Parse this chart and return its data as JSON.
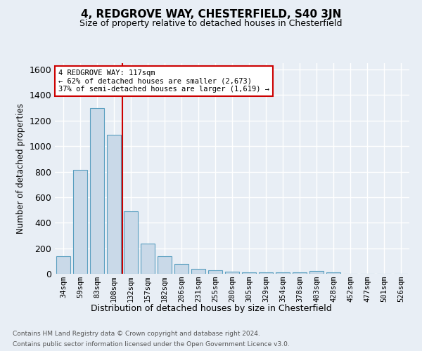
{
  "title": "4, REDGROVE WAY, CHESTERFIELD, S40 3JN",
  "subtitle": "Size of property relative to detached houses in Chesterfield",
  "xlabel": "Distribution of detached houses by size in Chesterfield",
  "ylabel": "Number of detached properties",
  "footer_line1": "Contains HM Land Registry data © Crown copyright and database right 2024.",
  "footer_line2": "Contains public sector information licensed under the Open Government Licence v3.0.",
  "bin_labels": [
    "34sqm",
    "59sqm",
    "83sqm",
    "108sqm",
    "132sqm",
    "157sqm",
    "182sqm",
    "206sqm",
    "231sqm",
    "255sqm",
    "280sqm",
    "305sqm",
    "329sqm",
    "354sqm",
    "378sqm",
    "403sqm",
    "428sqm",
    "452sqm",
    "477sqm",
    "501sqm",
    "526sqm"
  ],
  "bar_values": [
    140,
    815,
    1300,
    1090,
    490,
    235,
    135,
    75,
    40,
    25,
    15,
    10,
    10,
    10,
    10,
    20,
    10,
    0,
    0,
    0,
    0
  ],
  "bar_color": "#c9d9e8",
  "bar_edge_color": "#5a9fc0",
  "vline_color": "#cc0000",
  "annotation_text": "4 REDGROVE WAY: 117sqm\n← 62% of detached houses are smaller (2,673)\n37% of semi-detached houses are larger (1,619) →",
  "annotation_box_color": "#ffffff",
  "annotation_box_edge": "#cc0000",
  "ylim": [
    0,
    1650
  ],
  "yticks": [
    0,
    200,
    400,
    600,
    800,
    1000,
    1200,
    1400,
    1600
  ],
  "background_color": "#e8eef5",
  "grid_color": "#ffffff",
  "title_fontsize": 11,
  "subtitle_fontsize": 9
}
